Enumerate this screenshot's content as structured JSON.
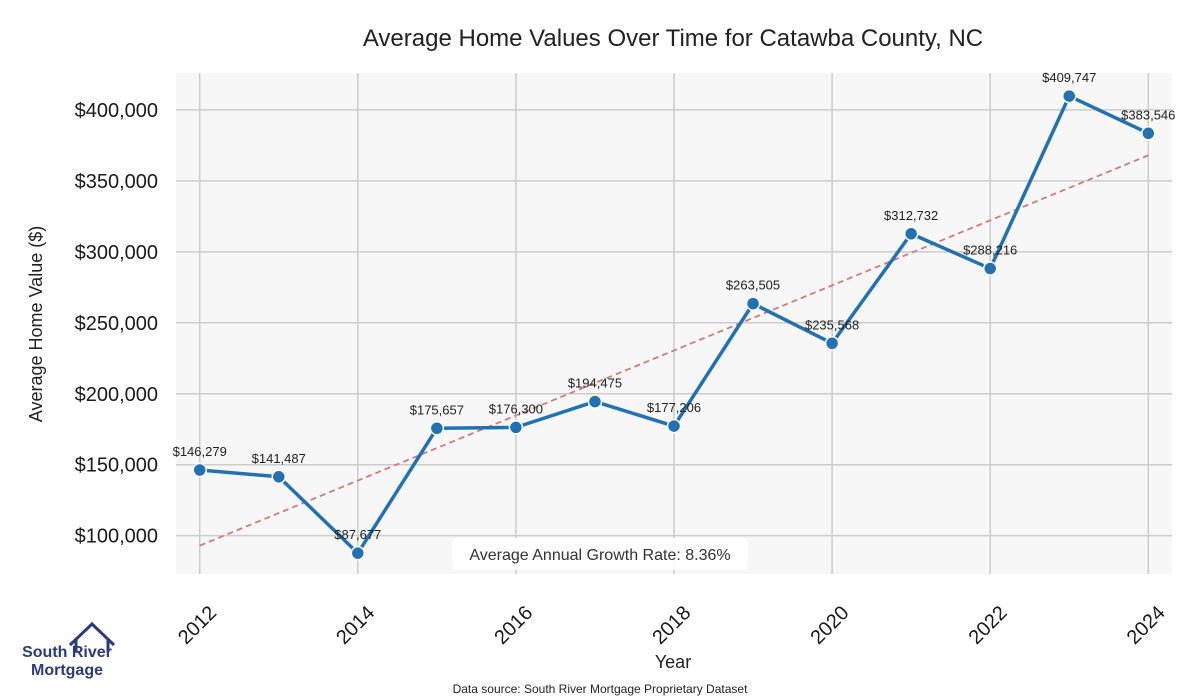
{
  "chart_data": {
    "type": "line",
    "title": "Average Home Values Over Time for Catawba County, NC",
    "xlabel": "Year",
    "ylabel": "Average Home Value ($)",
    "x": [
      2012,
      2013,
      2014,
      2015,
      2016,
      2017,
      2018,
      2019,
      2020,
      2021,
      2022,
      2023,
      2024
    ],
    "series": [
      {
        "name": "Average Home Value",
        "values": [
          146279,
          141487,
          87677,
          175657,
          176300,
          194475,
          177206,
          263505,
          235568,
          312732,
          288216,
          409747,
          383546
        ],
        "labels": [
          "$146,279",
          "$141,487",
          "$87,677",
          "$175,657",
          "$176,300",
          "$194,475",
          "$177,206",
          "$263,505",
          "$235,568",
          "$312,732",
          "$288,216",
          "$409,747",
          "$383,546"
        ],
        "color": "#2271b3"
      }
    ],
    "trend_line": {
      "start": [
        2012,
        93000
      ],
      "end": [
        2024,
        368000
      ],
      "color": "#d47a7a"
    },
    "xticks": [
      2012,
      2014,
      2016,
      2018,
      2020,
      2022,
      2024
    ],
    "xtick_labels": [
      "2012",
      "2014",
      "2016",
      "2018",
      "2020",
      "2022",
      "2024"
    ],
    "yticks": [
      100000,
      150000,
      200000,
      250000,
      300000,
      350000,
      400000
    ],
    "ytick_labels": [
      "$100,000",
      "$150,000",
      "$200,000",
      "$250,000",
      "$300,000",
      "$350,000",
      "$400,000"
    ],
    "xlim": [
      2011.7,
      2024.3
    ],
    "ylim": [
      73000,
      426000
    ],
    "grid": true,
    "background": "#f7f7f7",
    "grid_color": "#cccccc",
    "annotation": "Average Annual Growth Rate: 8.36%"
  },
  "source_note": "Data source: South River Mortgage Proprietary Dataset",
  "logo": {
    "line1": "South River",
    "line2": "Mortgage"
  }
}
